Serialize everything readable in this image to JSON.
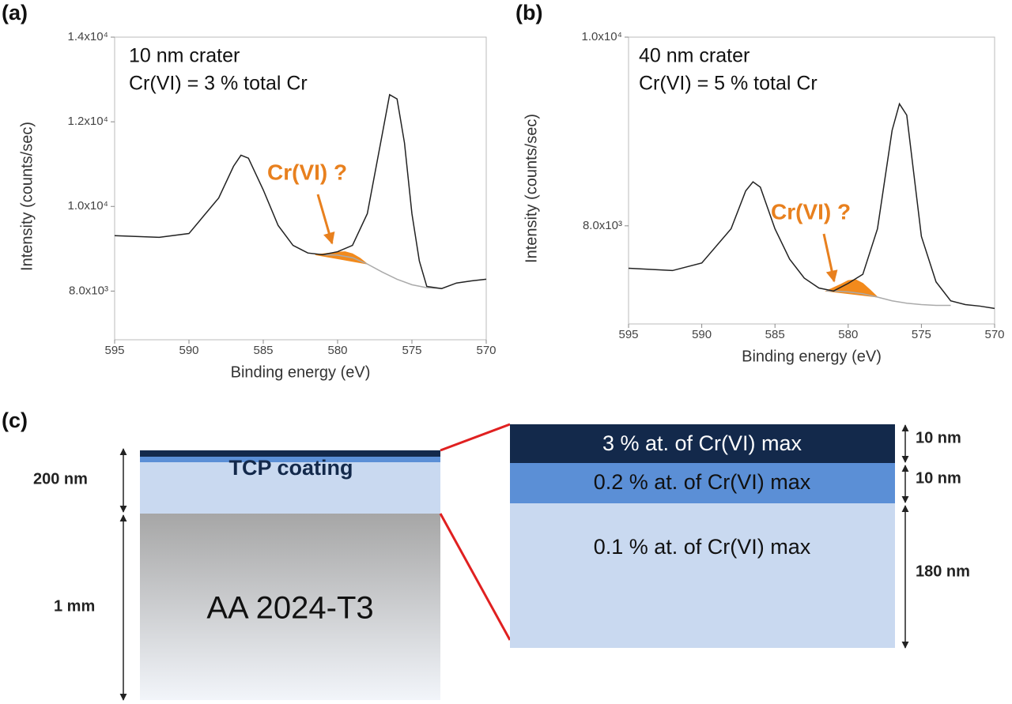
{
  "chart_data": [
    {
      "type": "line",
      "panel": "(a)",
      "xlabel": "Binding energy (eV)",
      "ylabel": "Intensity (counts/sec)",
      "annotations": [
        "10 nm crater",
        "Cr(VI) = 3 % total Cr"
      ],
      "callout": "Cr(VI) ?",
      "xlim": [
        595,
        570
      ],
      "xticks": [
        595,
        590,
        585,
        580,
        575,
        570
      ],
      "ylim": [
        6850,
        14000
      ],
      "yticks": [
        {
          "value": 8000,
          "label": "8.0x10³"
        },
        {
          "value": 10000,
          "label": "1.0x10⁴"
        },
        {
          "value": 12000,
          "label": "1.2x10⁴"
        },
        {
          "value": 14000,
          "label": "1.4x10⁴"
        }
      ],
      "series": [
        {
          "style": "area",
          "color": "#f28a1c",
          "x": [
            581.5,
            580.5,
            580,
            579.5,
            579,
            578.5,
            578
          ],
          "values": [
            8860,
            8900,
            8920,
            8930,
            8880,
            8780,
            8640
          ]
        },
        {
          "style": "line",
          "color": "#aaaaaa",
          "x": [
            581,
            580,
            579,
            578,
            577,
            576,
            575,
            574,
            573
          ],
          "values": [
            8860,
            8850,
            8790,
            8640,
            8450,
            8280,
            8150,
            8080,
            8060
          ]
        },
        {
          "style": "line",
          "color": "#222222",
          "x": [
            595,
            592,
            590,
            588,
            587,
            586.5,
            586,
            585,
            584,
            583,
            582,
            581,
            580,
            579,
            578,
            577,
            576.5,
            576,
            575.5,
            575,
            574.5,
            574,
            573,
            572,
            571,
            570
          ],
          "values": [
            9310,
            9270,
            9360,
            10200,
            10950,
            11210,
            11140,
            10390,
            9550,
            9080,
            8900,
            8860,
            8930,
            9080,
            9830,
            11700,
            12640,
            12540,
            11500,
            9830,
            8710,
            8110,
            8060,
            8190,
            8240,
            8280
          ]
        }
      ]
    },
    {
      "type": "line",
      "panel": "(b)",
      "xlabel": "Binding energy (eV)",
      "ylabel": "Intensity (counts/sec)",
      "annotations": [
        "40 nm crater",
        "Cr(VI) = 5 % total Cr"
      ],
      "callout": "Cr(VI) ?",
      "xlim": [
        595,
        570
      ],
      "xticks": [
        595,
        590,
        585,
        580,
        575,
        570
      ],
      "ylim": [
        6960,
        10000
      ],
      "yticks": [
        {
          "value": 8000,
          "label": "8.0x10³"
        },
        {
          "value": 10000,
          "label": "1.0x10⁴"
        }
      ],
      "series": [
        {
          "style": "area",
          "color": "#f28a1c",
          "x": [
            581.5,
            580.5,
            580,
            579.5,
            579,
            578.5,
            578
          ],
          "values": [
            7309,
            7380,
            7420,
            7430,
            7390,
            7320,
            7245
          ]
        },
        {
          "style": "line",
          "color": "#aaaaaa",
          "x": [
            581.5,
            581,
            580,
            579,
            578,
            577,
            576,
            575,
            574,
            573
          ],
          "values": [
            7309,
            7309,
            7300,
            7280,
            7245,
            7205,
            7180,
            7165,
            7157,
            7157
          ]
        },
        {
          "style": "line",
          "color": "#222222",
          "x": [
            595,
            592,
            590,
            588,
            587,
            586.5,
            586,
            585,
            584,
            583,
            582,
            581,
            580,
            579,
            578,
            577,
            576.5,
            576,
            575.5,
            575,
            574,
            573,
            572,
            571,
            570
          ],
          "values": [
            7550,
            7526,
            7606,
            7968,
            8370,
            8466,
            8410,
            7968,
            7647,
            7446,
            7341,
            7309,
            7390,
            7486,
            7968,
            9012,
            9293,
            9173,
            8530,
            7888,
            7406,
            7205,
            7165,
            7149,
            7124
          ]
        }
      ]
    }
  ],
  "diagram": {
    "panel": "(c)",
    "coating": {
      "label": "TCP coating",
      "thickness": "200 nm"
    },
    "substrate": {
      "label": "AA 2024-T3",
      "thickness": "1 mm"
    },
    "layers": [
      {
        "label": "3 % at. of Cr(VI) max",
        "thickness": "10 nm"
      },
      {
        "label": "0.2 % at. of Cr(VI) max",
        "thickness": "10 nm"
      },
      {
        "label": "0.1 % at. of Cr(VI) max",
        "thickness": "180 nm"
      }
    ]
  }
}
